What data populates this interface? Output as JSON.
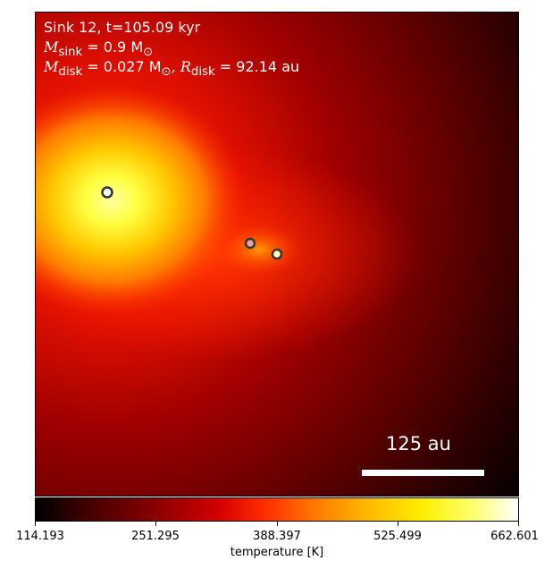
{
  "info": {
    "line1": "Sink 12, t=105.09 kyr",
    "msink_label": "M",
    "msink_sub": "sink",
    "msink_value": " = 0.9 M",
    "msink_unit_sub": "⊙",
    "mdisk_label": "M",
    "mdisk_sub": "disk",
    "mdisk_value": " = 0.027 M",
    "mdisk_unit_sub": "⊙",
    "rdisk_sep": ",  R",
    "rdisk_sub": "disk",
    "rdisk_value": " = 92.14 au"
  },
  "scale_bar": {
    "label": "125 au"
  },
  "colorbar": {
    "label": "temperature [K]",
    "ticks": [
      "114.193",
      "251.295",
      "388.397",
      "525.499",
      "662.601"
    ]
  },
  "sinks": [
    {
      "name": "sink-primary",
      "fill": "#ffffff"
    },
    {
      "name": "sink-secondary",
      "fill": "#e8a0a0"
    },
    {
      "name": "sink-tertiary",
      "fill": "#ffffc0"
    }
  ]
}
